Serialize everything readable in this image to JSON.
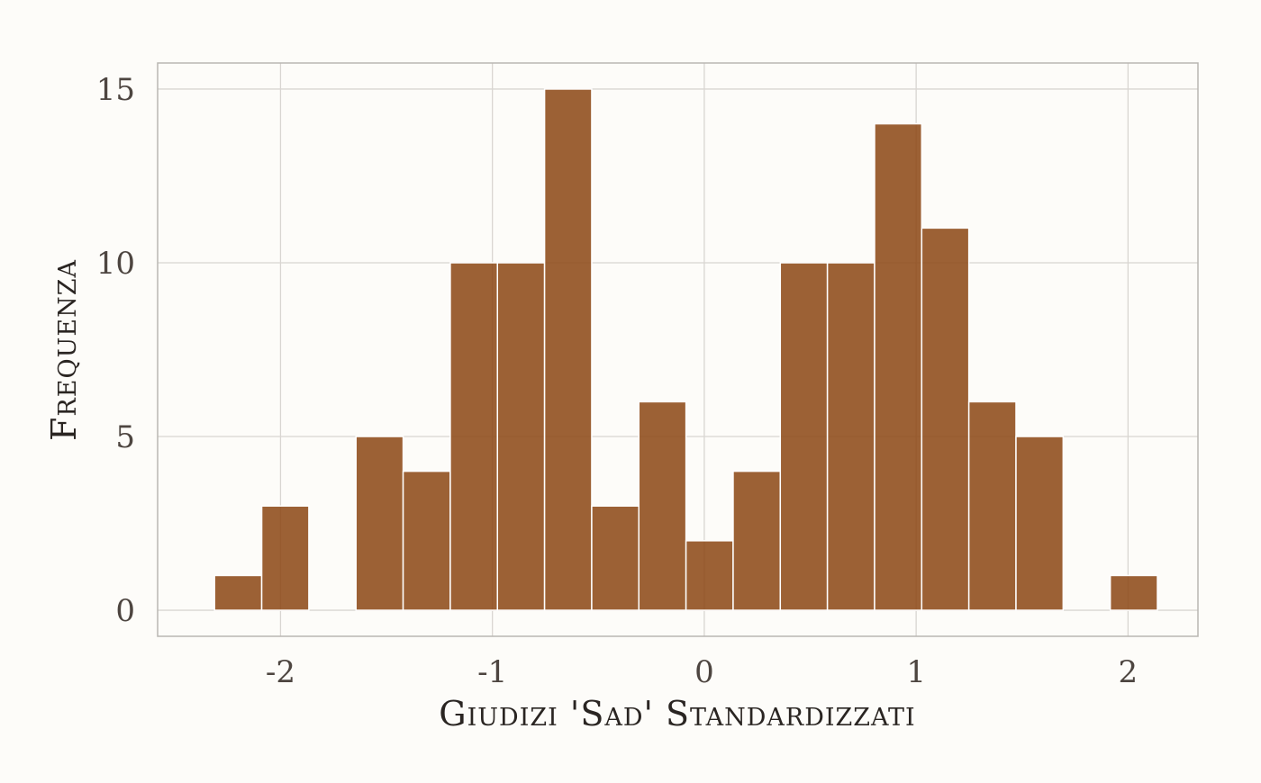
{
  "chart_data": {
    "type": "bar",
    "title": "",
    "xlabel": "Giudizi 'Sad' Standardizzati",
    "ylabel": "Frequenza",
    "bin_width": 0.2225,
    "bins": [
      {
        "x": -2.2,
        "count": 1
      },
      {
        "x": -1.9775,
        "count": 3
      },
      {
        "x": -1.755,
        "count": 0
      },
      {
        "x": -1.5325,
        "count": 5
      },
      {
        "x": -1.31,
        "count": 4
      },
      {
        "x": -1.0875,
        "count": 10
      },
      {
        "x": -0.865,
        "count": 10
      },
      {
        "x": -0.6425,
        "count": 15
      },
      {
        "x": -0.42,
        "count": 3
      },
      {
        "x": -0.1975,
        "count": 6
      },
      {
        "x": 0.025,
        "count": 2
      },
      {
        "x": 0.2475,
        "count": 4
      },
      {
        "x": 0.47,
        "count": 10
      },
      {
        "x": 0.6925,
        "count": 10
      },
      {
        "x": 0.915,
        "count": 14
      },
      {
        "x": 1.1375,
        "count": 11
      },
      {
        "x": 1.36,
        "count": 6
      },
      {
        "x": 1.5825,
        "count": 5
      },
      {
        "x": 1.805,
        "count": 0
      },
      {
        "x": 2.0275,
        "count": 1
      }
    ],
    "xlim": [
      -2.58,
      2.33
    ],
    "ylim": [
      -0.75,
      15.75
    ],
    "x_ticks": [
      {
        "value": -2,
        "label": "-2"
      },
      {
        "value": -1,
        "label": "-1"
      },
      {
        "value": 0,
        "label": "0"
      },
      {
        "value": 1,
        "label": "1"
      },
      {
        "value": 2,
        "label": "2"
      }
    ],
    "y_ticks": [
      {
        "value": 0,
        "label": "0"
      },
      {
        "value": 5,
        "label": "5"
      },
      {
        "value": 10,
        "label": "10"
      },
      {
        "value": 15,
        "label": "15"
      }
    ],
    "grid": true,
    "legend": "none",
    "bar_color": "#8b4513"
  }
}
